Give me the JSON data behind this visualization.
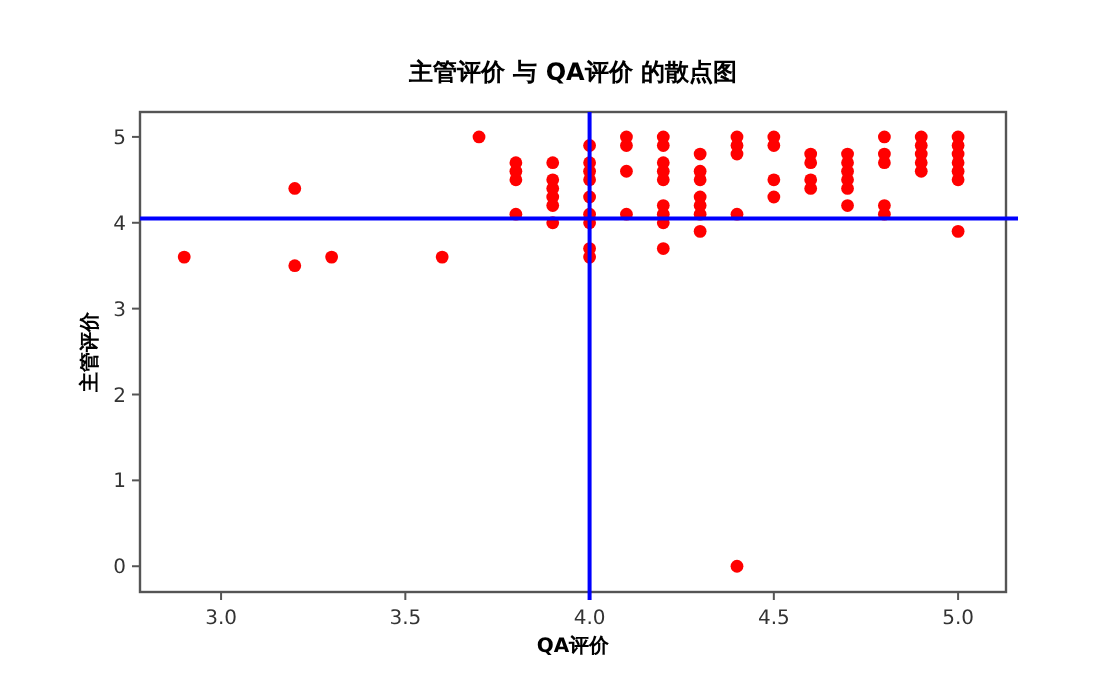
{
  "chart_data": {
    "type": "scatter",
    "title": "主管评价 与 QA评价 的散点图",
    "xlabel": "QA评价",
    "ylabel": "主管评价",
    "xlim": [
      2.78,
      5.13
    ],
    "ylim": [
      -0.3,
      5.29
    ],
    "xticks": [
      {
        "value": 3,
        "label": "3.0"
      },
      {
        "value": 3.5,
        "label": "3.5"
      },
      {
        "value": 4,
        "label": "4.0"
      },
      {
        "value": 4.5,
        "label": "4.5"
      },
      {
        "value": 5,
        "label": "5.0"
      }
    ],
    "yticks": [
      0,
      1,
      2,
      3,
      4,
      5
    ],
    "marker": "circle",
    "ref_lines": [
      {
        "axis": "x",
        "value": 4.0,
        "color": "#0000ff"
      },
      {
        "axis": "y",
        "value": 4.05,
        "color": "#0000ff"
      }
    ],
    "series": [
      {
        "color": "#ff0000",
        "x": [
          2.9,
          3.2,
          3.2,
          3.3,
          3.6,
          3.7,
          3.8,
          3.8,
          3.8,
          3.8,
          3.9,
          3.9,
          3.9,
          3.9,
          3.9,
          3.9,
          4.0,
          4.0,
          4.0,
          4.0,
          4.0,
          4.0,
          4.0,
          4.0,
          4.0,
          4.1,
          4.1,
          4.1,
          4.1,
          4.2,
          4.2,
          4.2,
          4.2,
          4.2,
          4.2,
          4.2,
          4.2,
          4.2,
          4.3,
          4.3,
          4.3,
          4.3,
          4.3,
          4.3,
          4.3,
          4.4,
          4.4,
          4.4,
          4.4,
          4.4,
          4.5,
          4.5,
          4.5,
          4.5,
          4.6,
          4.6,
          4.6,
          4.6,
          4.7,
          4.7,
          4.7,
          4.7,
          4.7,
          4.7,
          4.8,
          4.8,
          4.8,
          4.8,
          4.8,
          4.9,
          4.9,
          4.9,
          4.9,
          4.9,
          5.0,
          5.0,
          5.0,
          5.0,
          5.0,
          5.0,
          5.0
        ],
        "values": [
          3.6,
          4.4,
          3.5,
          3.6,
          3.6,
          5.0,
          4.7,
          4.6,
          4.5,
          4.1,
          4.7,
          4.5,
          4.4,
          4.3,
          4.2,
          4.0,
          4.9,
          4.7,
          4.6,
          4.5,
          4.3,
          4.1,
          4.0,
          3.7,
          3.6,
          5.0,
          4.9,
          4.6,
          4.1,
          5.0,
          4.9,
          4.7,
          4.6,
          4.5,
          4.2,
          4.1,
          4.0,
          3.7,
          4.8,
          4.6,
          4.5,
          4.3,
          4.2,
          4.1,
          3.9,
          5.0,
          4.9,
          4.8,
          4.1,
          0,
          5.0,
          4.9,
          4.5,
          4.3,
          4.8,
          4.7,
          4.5,
          4.4,
          4.8,
          4.7,
          4.6,
          4.5,
          4.4,
          4.2,
          5.0,
          4.8,
          4.7,
          4.2,
          4.1,
          5.0,
          4.9,
          4.8,
          4.7,
          4.6,
          5.0,
          4.9,
          4.8,
          4.7,
          4.6,
          4.5,
          3.9
        ]
      }
    ]
  }
}
